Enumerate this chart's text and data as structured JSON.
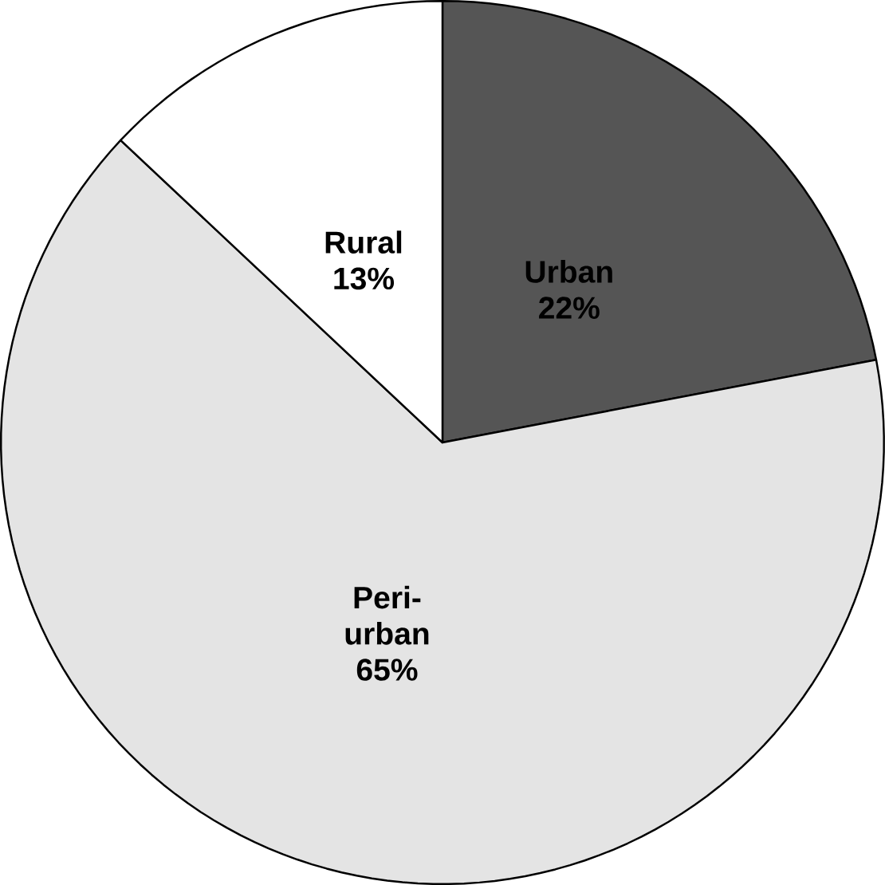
{
  "chart_data": {
    "type": "pie",
    "categories": [
      "Urban",
      "Peri-urban",
      "Rural"
    ],
    "values": [
      22,
      65,
      13
    ],
    "value_labels": [
      "22%",
      "65%",
      "13%"
    ],
    "colors": [
      "#555555",
      "#e4e4e4",
      "#ffffff"
    ]
  }
}
